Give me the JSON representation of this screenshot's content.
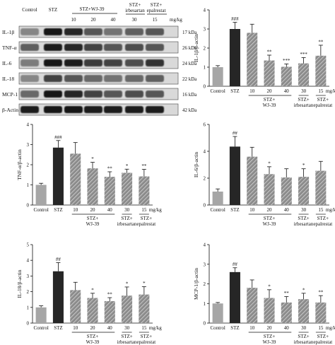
{
  "blot": {
    "header_labels": {
      "control": "Control",
      "stz": "STZ",
      "stz_wj": "STZ+WJ-39",
      "stz_irb_1": "STZ+",
      "stz_irb_2": "irbesartan",
      "stz_epa_1": "STZ+",
      "stz_epa_2": "epalrestat",
      "d10": "10",
      "d20": "20",
      "d40": "40",
      "d30": "30",
      "d15": "15",
      "unit": "mg/kg"
    },
    "rows": [
      {
        "protein": "IL-1β",
        "kda": "17 kDa"
      },
      {
        "protein": "TNF-α",
        "kda": "26 kDa"
      },
      {
        "protein": "IL-6",
        "kda": "24 kDa"
      },
      {
        "protein": "IL-18",
        "kda": "22 kDa"
      },
      {
        "protein": "MCP-1",
        "kda": "16 kDa"
      },
      {
        "protein": "β-Actin",
        "kda": "42 kDa"
      }
    ]
  },
  "x_labels": {
    "control": "Control",
    "stz": "STZ",
    "d10": "10",
    "d20": "20",
    "d40": "40",
    "d30": "30",
    "d15": "15",
    "unit": "mg/kg",
    "wj_1": "STZ+",
    "wj_2": "WJ-39",
    "irb_1": "STZ+",
    "irb_2": "irbesartan",
    "epa_1": "STZ+",
    "epa_2": "epalrestat"
  },
  "colors": {
    "control": "#a6a6a6",
    "stz": "#262626",
    "treated": "#8c8c8c",
    "hatch": "#e0e0e0"
  },
  "chart_data": [
    {
      "id": "il1b",
      "type": "bar",
      "ylabel": "IL-1β/β-actin",
      "ylim": [
        0,
        4
      ],
      "yticks": [
        0,
        1,
        2,
        3,
        4
      ],
      "categories": [
        "Control",
        "STZ",
        "10",
        "20",
        "40",
        "30",
        "15"
      ],
      "values": [
        1.0,
        3.0,
        2.8,
        1.35,
        1.02,
        1.2,
        1.6
      ],
      "errors": [
        0.08,
        0.35,
        0.45,
        0.28,
        0.15,
        0.3,
        0.55
      ],
      "sig": [
        "",
        "###",
        "",
        "**",
        "***",
        "***",
        "**"
      ]
    },
    {
      "id": "tnfa",
      "type": "bar",
      "ylabel": "TNF-α/β-actin",
      "ylim": [
        0,
        4
      ],
      "yticks": [
        0,
        1,
        2,
        3,
        4
      ],
      "categories": [
        "Control",
        "STZ",
        "10",
        "20",
        "40",
        "30",
        "15"
      ],
      "values": [
        1.0,
        2.85,
        2.55,
        1.82,
        1.4,
        1.6,
        1.42
      ],
      "errors": [
        0.08,
        0.35,
        0.55,
        0.3,
        0.25,
        0.18,
        0.35
      ],
      "sig": [
        "",
        "###",
        "",
        "*",
        "**",
        "*",
        "**"
      ]
    },
    {
      "id": "il6",
      "type": "bar",
      "ylabel": "IL-6/β-actin",
      "ylim": [
        0,
        6
      ],
      "yticks": [
        0,
        2,
        4,
        6
      ],
      "categories": [
        "Control",
        "STZ",
        "10",
        "20",
        "40",
        "30",
        "15"
      ],
      "values": [
        1.0,
        4.35,
        3.6,
        2.3,
        2.05,
        2.1,
        2.55
      ],
      "errors": [
        0.2,
        0.75,
        0.7,
        0.55,
        0.65,
        0.6,
        0.7
      ],
      "sig": [
        "",
        "##",
        "",
        "*",
        "",
        "*",
        ""
      ]
    },
    {
      "id": "il18",
      "type": "bar",
      "ylabel": "IL-18/β-actin",
      "ylim": [
        0,
        5
      ],
      "yticks": [
        0,
        1,
        2,
        3,
        4,
        5
      ],
      "categories": [
        "Control",
        "STZ",
        "10",
        "20",
        "40",
        "30",
        "15"
      ],
      "values": [
        1.0,
        3.3,
        2.1,
        1.6,
        1.4,
        1.75,
        1.82
      ],
      "errors": [
        0.1,
        0.55,
        0.5,
        0.3,
        0.22,
        0.55,
        0.5
      ],
      "sig": [
        "",
        "##",
        "",
        "*",
        "**",
        "*",
        "*"
      ]
    },
    {
      "id": "mcp1",
      "type": "bar",
      "ylabel": "MCP-1/β-actin",
      "ylim": [
        0,
        4
      ],
      "yticks": [
        0,
        1,
        2,
        3,
        4
      ],
      "categories": [
        "Control",
        "STZ",
        "10",
        "20",
        "40",
        "30",
        "15"
      ],
      "values": [
        1.0,
        2.6,
        1.8,
        1.28,
        1.05,
        1.22,
        1.05
      ],
      "errors": [
        0.05,
        0.22,
        0.4,
        0.42,
        0.3,
        0.3,
        0.35
      ],
      "sig": [
        "",
        "##",
        "",
        "*",
        "**",
        "*",
        "**"
      ]
    }
  ]
}
